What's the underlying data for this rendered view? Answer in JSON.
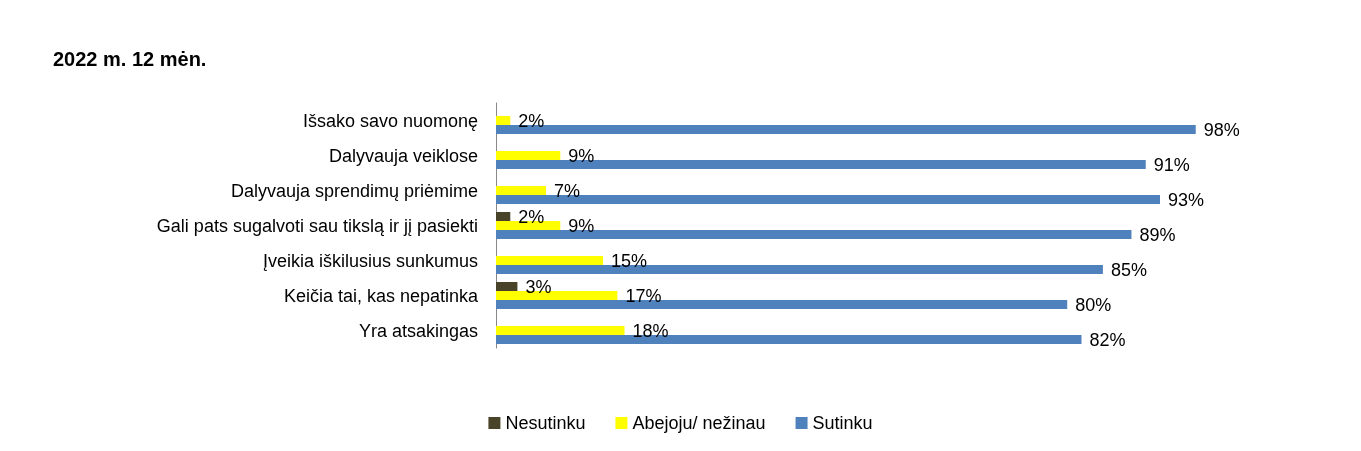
{
  "chart_data": {
    "type": "bar",
    "orientation": "horizontal",
    "title": "2022 m. 12 mėn.",
    "categories": [
      "Išsako savo nuomonę",
      "Dalyvauja veiklose",
      "Dalyvauja sprendimų priėmime",
      "Gali pats sugalvoti sau tikslą ir jį pasiekti",
      "Įveikia iškilusius sunkumus",
      "Keičia tai, kas nepatinka",
      "Yra atsakingas"
    ],
    "series": [
      {
        "name": "Nesutinku",
        "color": "#494429",
        "values": [
          null,
          null,
          null,
          2,
          null,
          3,
          null
        ],
        "value_labels": [
          null,
          null,
          null,
          "2%",
          null,
          "3%",
          null
        ]
      },
      {
        "name": "Abejoju/ nežinau",
        "color": "#ffff00",
        "values": [
          2,
          9,
          7,
          9,
          15,
          17,
          18
        ],
        "value_labels": [
          "2%",
          "9%",
          "7%",
          "9%",
          "15%",
          "17%",
          "18%"
        ]
      },
      {
        "name": "Sutinku",
        "color": "#4f81bd",
        "values": [
          98,
          91,
          93,
          89,
          85,
          80,
          82
        ],
        "value_labels": [
          "98%",
          "91%",
          "93%",
          "89%",
          "85%",
          "80%",
          "82%"
        ]
      }
    ],
    "legend": "bottom",
    "grid": false
  }
}
